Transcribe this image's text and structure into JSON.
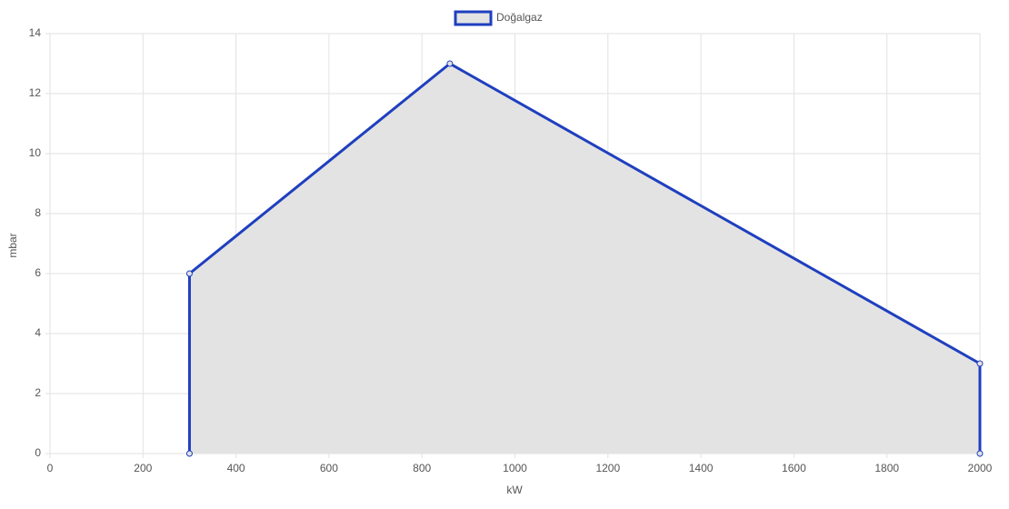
{
  "chart_data": {
    "type": "line",
    "x_label": "kW",
    "y_label": "mbar",
    "series": [
      {
        "name": "Doğalgaz",
        "color": "#1f3fbf",
        "fill": "#e3e3e3",
        "x": [
          300,
          300,
          860,
          2000,
          2000
        ],
        "values": [
          0,
          6,
          13,
          3,
          0
        ]
      }
    ],
    "xlim": [
      0,
      2000
    ],
    "xticks": [
      0,
      200,
      400,
      600,
      800,
      1000,
      1200,
      1400,
      1600,
      1800,
      2000
    ],
    "ylim": [
      0,
      14
    ],
    "yticks": [
      0,
      2,
      4,
      6,
      8,
      10,
      12,
      14
    ],
    "grid": true,
    "legend": "top"
  }
}
